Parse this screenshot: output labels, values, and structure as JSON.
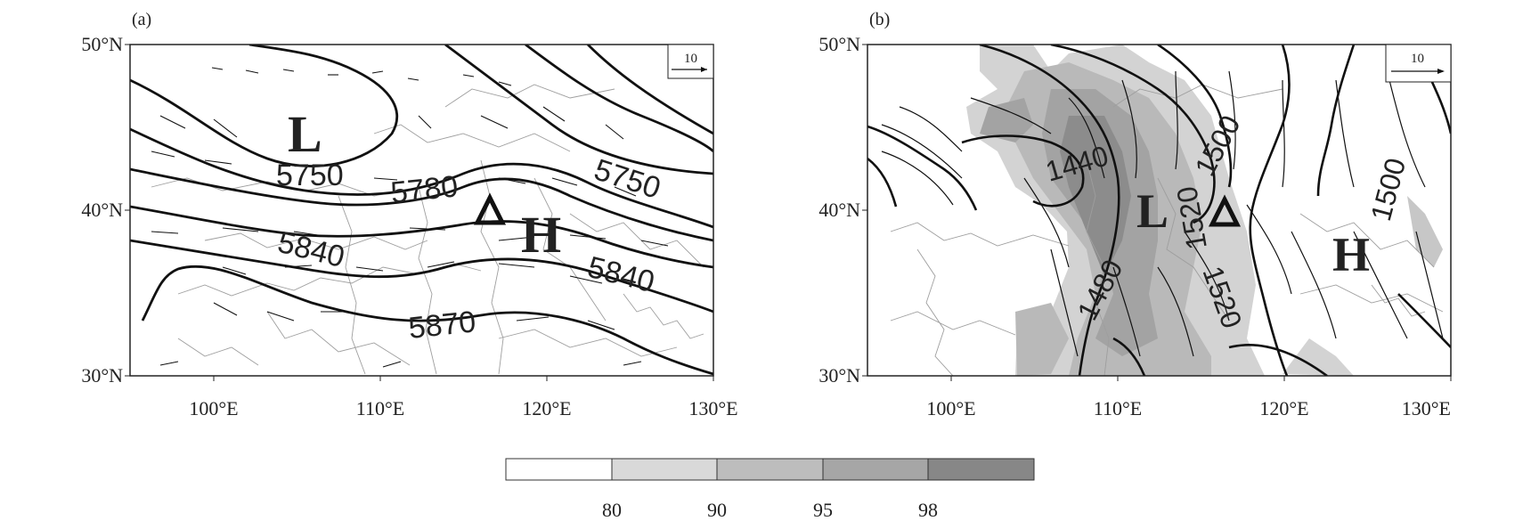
{
  "panels": [
    {
      "id": "a",
      "label": "(a)",
      "lat_ticks": [
        "50°N",
        "40°N",
        "30°N"
      ],
      "lon_ticks": [
        "100°E",
        "110°E",
        "120°E",
        "130°E"
      ],
      "extent": {
        "lon": [
          95,
          130
        ],
        "lat": [
          30,
          50
        ]
      },
      "reference_vector_label": "10",
      "contour_labels": [
        "5750",
        "5780",
        "5750",
        "5840",
        "5840",
        "5870"
      ],
      "system_markers": [
        "L",
        "H"
      ],
      "station_marker": "triangle",
      "shading": false
    },
    {
      "id": "b",
      "label": "(b)",
      "lat_ticks": [
        "50°N",
        "40°N",
        "30°N"
      ],
      "lon_ticks": [
        "100°E",
        "110°E",
        "120°E",
        "130°E"
      ],
      "extent": {
        "lon": [
          95,
          130
        ],
        "lat": [
          30,
          50
        ]
      },
      "reference_vector_label": "10",
      "contour_labels": [
        "1440",
        "1500",
        "1480",
        "1520",
        "1520",
        "1500"
      ],
      "system_markers": [
        "L",
        "H"
      ],
      "station_marker": "triangle",
      "shading": true
    }
  ],
  "colorbar": {
    "tick_labels": [
      "80",
      "90",
      "95",
      "98"
    ],
    "colors": [
      "#ffffff",
      "#d9d9d9",
      "#bdbdbd",
      "#a6a6a6",
      "#878787"
    ]
  },
  "colors": {
    "contour": "#111111",
    "border": "#999999",
    "frame": "#222222"
  }
}
